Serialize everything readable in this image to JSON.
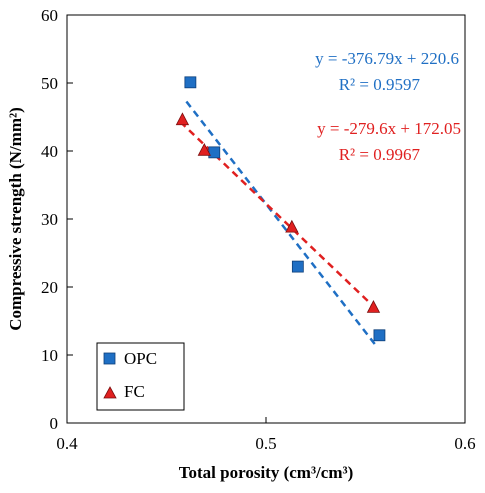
{
  "chart_data": {
    "type": "scatter",
    "xlabel": "Total porosity (cm³/cm³)",
    "ylabel": "Compressive strength (N/mm²)",
    "xlim": [
      0.4,
      0.6
    ],
    "ylim": [
      0,
      60
    ],
    "xticks": [
      0.4,
      0.5,
      0.6
    ],
    "xtick_labels": [
      "0.4",
      "0.5",
      "0.6"
    ],
    "yticks": [
      0,
      10,
      20,
      30,
      40,
      50,
      60
    ],
    "ytick_labels": [
      "0",
      "10",
      "20",
      "30",
      "40",
      "50",
      "60"
    ],
    "grid": false,
    "legend_position": "bottom-left",
    "series": [
      {
        "name": "OPC",
        "marker": "square",
        "color": "#1f6fc4",
        "x": [
          0.462,
          0.474,
          0.516,
          0.557
        ],
        "y": [
          50.1,
          39.8,
          23.0,
          12.9
        ],
        "trendline": {
          "slope": -376.79,
          "intercept": 220.6,
          "x_range": [
            0.46,
            0.556
          ],
          "equation": "y = -376.79x + 220.6",
          "r2": "R² = 0.9597",
          "color": "#1f6fc4"
        }
      },
      {
        "name": "FC",
        "marker": "triangle",
        "color": "#e02020",
        "x": [
          0.458,
          0.469,
          0.513,
          0.554
        ],
        "y": [
          44.6,
          40.1,
          28.8,
          17.0
        ],
        "trendline": {
          "slope": -279.6,
          "intercept": 172.05,
          "x_range": [
            0.457,
            0.554
          ],
          "equation": "y = -279.6x + 172.05",
          "r2": "R² = 0.9967",
          "color": "#e02020"
        }
      }
    ]
  }
}
